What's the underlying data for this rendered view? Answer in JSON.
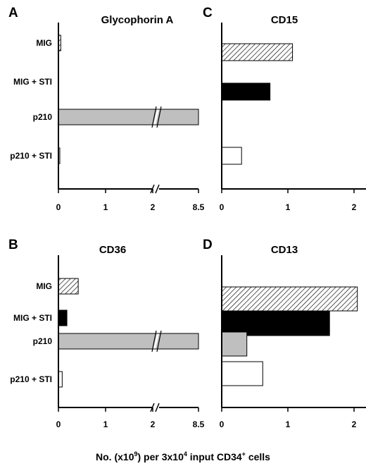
{
  "figure": {
    "xlabel_prefix": "No. (x10",
    "xlabel_exp1": "9",
    "xlabel_mid": ") per 3x10",
    "xlabel_exp2": "4",
    "xlabel_mid2": " input CD34",
    "xlabel_exp3": "+",
    "xlabel_suffix": " cells"
  },
  "colors": {
    "MIG": "hatched-white",
    "MIG + STI": "#000000",
    "p210": "#bfbfbf",
    "p210 + STI": "#ffffff",
    "axis": "#000000"
  },
  "chart_data": [
    {
      "type": "bar",
      "orientation": "horizontal",
      "panel": "A",
      "title": "Glycophorin A",
      "categories": [
        "MIG",
        "MIG + STI",
        "p210",
        "p210 + STI"
      ],
      "values": [
        0.05,
        0,
        8.5,
        0.01
      ],
      "xlim": [
        0,
        8.5
      ],
      "axis_break": true,
      "xticks": [
        "0",
        "1",
        "2",
        "8.5"
      ]
    },
    {
      "type": "bar",
      "orientation": "horizontal",
      "panel": "B",
      "title": "CD36",
      "categories": [
        "MIG",
        "MIG + STI",
        "p210",
        "p210 + STI"
      ],
      "values": [
        0.42,
        0.18,
        8.5,
        0.08
      ],
      "xlim": [
        0,
        8.5
      ],
      "axis_break": true,
      "xticks": [
        "0",
        "1",
        "2",
        "8.5"
      ]
    },
    {
      "type": "bar",
      "orientation": "horizontal",
      "panel": "C",
      "title": "CD15",
      "categories": [
        "MIG",
        "MIG + STI",
        "p210",
        "p210 + STI"
      ],
      "values": [
        1.07,
        0.73,
        0,
        0.3
      ],
      "xlim": [
        0,
        3
      ],
      "axis_break": false,
      "xticks": [
        "0",
        "1",
        "2",
        "3"
      ]
    },
    {
      "type": "bar",
      "orientation": "horizontal",
      "panel": "D",
      "title": "CD13",
      "categories": [
        "MIG",
        "MIG + STI",
        "p210",
        "p210 + STI"
      ],
      "values": [
        2.05,
        1.63,
        0.38,
        0.62
      ],
      "xlim": [
        0,
        3
      ],
      "axis_break": false,
      "xticks": [
        "0",
        "1",
        "2",
        "3"
      ]
    }
  ]
}
